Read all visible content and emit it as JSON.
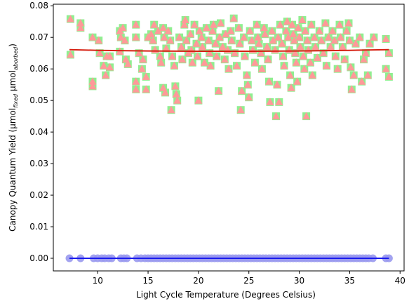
{
  "chart_data": {
    "type": "scatter",
    "xlabel": "Light Cycle Temperature (Degrees Celsius)",
    "ylabel": {
      "text": "Canopy Quantum Yield (μmol",
      "sub1": "fixed",
      "mid": " μmol",
      "sub2": "aborbed",
      "end": ")"
    },
    "xlim": [
      5.6,
      40.4
    ],
    "ylim": [
      -0.004,
      0.0805
    ],
    "xticks": [
      10,
      15,
      20,
      25,
      30,
      35,
      40
    ],
    "xtick_labels": [
      "10",
      "15",
      "20",
      "25",
      "30",
      "35",
      "40"
    ],
    "yticks": [
      0.0,
      0.01,
      0.02,
      0.03,
      0.04,
      0.05,
      0.06,
      0.07,
      0.08
    ],
    "ytick_labels": [
      "0.00",
      "0.01",
      "0.02",
      "0.03",
      "0.04",
      "0.05",
      "0.06",
      "0.07",
      "0.08"
    ],
    "grid": false,
    "series": [
      {
        "marker": "square",
        "color": "#90EE90",
        "points": [
          [
            7.3,
            0.0758
          ],
          [
            7.3,
            0.0645
          ],
          [
            8.3,
            0.0745
          ],
          [
            8.3,
            0.073
          ],
          [
            9.5,
            0.07
          ],
          [
            9.5,
            0.056
          ],
          [
            9.5,
            0.0545
          ],
          [
            10.1,
            0.069
          ],
          [
            10.2,
            0.065
          ],
          [
            10.6,
            0.061
          ],
          [
            10.8,
            0.058
          ],
          [
            10.9,
            0.064
          ],
          [
            11.2,
            0.0605
          ],
          [
            11.2,
            0.064
          ],
          [
            12.2,
            0.072
          ],
          [
            12.3,
            0.07
          ],
          [
            12.2,
            0.0655
          ],
          [
            12.5,
            0.073
          ],
          [
            12.7,
            0.069
          ],
          [
            12.8,
            0.063
          ],
          [
            13.0,
            0.0615
          ],
          [
            13.8,
            0.074
          ],
          [
            13.8,
            0.07
          ],
          [
            13.8,
            0.056
          ],
          [
            13.8,
            0.0535
          ],
          [
            14.1,
            0.065
          ],
          [
            14.4,
            0.06
          ],
          [
            14.5,
            0.063
          ],
          [
            14.8,
            0.0575
          ],
          [
            14.8,
            0.0535
          ],
          [
            15.0,
            0.07
          ],
          [
            15.3,
            0.071
          ],
          [
            15.5,
            0.069
          ],
          [
            15.6,
            0.074
          ],
          [
            15.7,
            0.066
          ],
          [
            16.0,
            0.072
          ],
          [
            16.2,
            0.064
          ],
          [
            16.3,
            0.062
          ],
          [
            16.5,
            0.073
          ],
          [
            16.5,
            0.054
          ],
          [
            16.6,
            0.07
          ],
          [
            16.7,
            0.0525
          ],
          [
            16.8,
            0.0665
          ],
          [
            17.0,
            0.072
          ],
          [
            17.2,
            0.069
          ],
          [
            17.3,
            0.047
          ],
          [
            17.4,
            0.064
          ],
          [
            17.6,
            0.061
          ],
          [
            17.7,
            0.0545
          ],
          [
            17.8,
            0.052
          ],
          [
            17.9,
            0.05
          ],
          [
            18.1,
            0.07
          ],
          [
            18.3,
            0.067
          ],
          [
            18.4,
            0.063
          ],
          [
            18.6,
            0.074
          ],
          [
            18.7,
            0.0755
          ],
          [
            18.8,
            0.069
          ],
          [
            19.0,
            0.065
          ],
          [
            19.2,
            0.071
          ],
          [
            19.3,
            0.066
          ],
          [
            19.4,
            0.062
          ],
          [
            19.6,
            0.074
          ],
          [
            19.8,
            0.068
          ],
          [
            19.9,
            0.064
          ],
          [
            20.0,
            0.05
          ],
          [
            20.1,
            0.072
          ],
          [
            20.3,
            0.07
          ],
          [
            20.4,
            0.067
          ],
          [
            20.6,
            0.062
          ],
          [
            20.8,
            0.073
          ],
          [
            21.0,
            0.069
          ],
          [
            21.1,
            0.065
          ],
          [
            21.2,
            0.061
          ],
          [
            21.4,
            0.072
          ],
          [
            21.5,
            0.074
          ],
          [
            21.7,
            0.068
          ],
          [
            21.8,
            0.064
          ],
          [
            22.0,
            0.053
          ],
          [
            22.1,
            0.07
          ],
          [
            22.2,
            0.0745
          ],
          [
            22.4,
            0.067
          ],
          [
            22.6,
            0.063
          ],
          [
            22.7,
            0.071
          ],
          [
            22.9,
            0.066
          ],
          [
            23.0,
            0.06
          ],
          [
            23.2,
            0.072
          ],
          [
            23.3,
            0.069
          ],
          [
            23.5,
            0.076
          ],
          [
            23.6,
            0.065
          ],
          [
            23.8,
            0.061
          ],
          [
            24.0,
            0.073
          ],
          [
            24.1,
            0.068
          ],
          [
            24.2,
            0.047
          ],
          [
            24.3,
            0.053
          ],
          [
            24.5,
            0.07
          ],
          [
            24.6,
            0.064
          ],
          [
            24.8,
            0.058
          ],
          [
            24.9,
            0.055
          ],
          [
            25.0,
            0.051
          ],
          [
            25.1,
            0.072
          ],
          [
            25.3,
            0.069
          ],
          [
            25.4,
            0.066
          ],
          [
            25.6,
            0.062
          ],
          [
            25.8,
            0.074
          ],
          [
            25.9,
            0.07
          ],
          [
            26.0,
            0.068
          ],
          [
            26.2,
            0.065
          ],
          [
            26.3,
            0.06
          ],
          [
            26.5,
            0.073
          ],
          [
            26.6,
            0.071
          ],
          [
            26.8,
            0.067
          ],
          [
            26.9,
            0.063
          ],
          [
            27.0,
            0.056
          ],
          [
            27.1,
            0.0495
          ],
          [
            27.3,
            0.072
          ],
          [
            27.4,
            0.069
          ],
          [
            27.6,
            0.066
          ],
          [
            27.7,
            0.045
          ],
          [
            27.8,
            0.055
          ],
          [
            27.9,
            0.07
          ],
          [
            28.0,
            0.0495
          ],
          [
            28.1,
            0.074
          ],
          [
            28.3,
            0.068
          ],
          [
            28.4,
            0.064
          ],
          [
            28.5,
            0.061
          ],
          [
            28.7,
            0.072
          ],
          [
            28.8,
            0.075
          ],
          [
            28.9,
            0.07
          ],
          [
            29.0,
            0.066
          ],
          [
            29.1,
            0.058
          ],
          [
            29.2,
            0.054
          ],
          [
            29.3,
            0.074
          ],
          [
            29.4,
            0.071
          ],
          [
            29.5,
            0.069
          ],
          [
            29.6,
            0.065
          ],
          [
            29.7,
            0.062
          ],
          [
            29.8,
            0.056
          ],
          [
            29.9,
            0.073
          ],
          [
            30.0,
            0.07
          ],
          [
            30.1,
            0.067
          ],
          [
            30.3,
            0.0755
          ],
          [
            30.4,
            0.064
          ],
          [
            30.5,
            0.06
          ],
          [
            30.6,
            0.072
          ],
          [
            30.7,
            0.045
          ],
          [
            30.8,
            0.069
          ],
          [
            30.9,
            0.066
          ],
          [
            31.1,
            0.062
          ],
          [
            31.2,
            0.074
          ],
          [
            31.3,
            0.058
          ],
          [
            31.5,
            0.07
          ],
          [
            31.6,
            0.067
          ],
          [
            31.8,
            0.0635
          ],
          [
            32.0,
            0.072
          ],
          [
            32.2,
            0.069
          ],
          [
            32.4,
            0.065
          ],
          [
            32.6,
            0.0745
          ],
          [
            32.7,
            0.061
          ],
          [
            32.9,
            0.07
          ],
          [
            33.1,
            0.067
          ],
          [
            33.3,
            0.072
          ],
          [
            33.5,
            0.069
          ],
          [
            33.6,
            0.064
          ],
          [
            33.8,
            0.06
          ],
          [
            34.0,
            0.074
          ],
          [
            34.1,
            0.07
          ],
          [
            34.3,
            0.067
          ],
          [
            34.5,
            0.063
          ],
          [
            34.7,
            0.072
          ],
          [
            34.9,
            0.0745
          ],
          [
            35.0,
            0.069
          ],
          [
            35.1,
            0.0605
          ],
          [
            35.2,
            0.0535
          ],
          [
            35.4,
            0.058
          ],
          [
            35.6,
            0.068
          ],
          [
            36.0,
            0.07
          ],
          [
            36.2,
            0.056
          ],
          [
            36.4,
            0.063
          ],
          [
            36.6,
            0.065
          ],
          [
            36.8,
            0.058
          ],
          [
            37.0,
            0.068
          ],
          [
            37.4,
            0.07
          ],
          [
            38.6,
            0.0695
          ],
          [
            38.6,
            0.06
          ],
          [
            38.9,
            0.065
          ],
          [
            38.9,
            0.0575
          ]
        ]
      },
      {
        "marker": "triangle-up",
        "color": "#FF9999",
        "points": "same as the square series (overlaid)"
      },
      {
        "marker": "circle",
        "color": "#9999EE",
        "points_note": "all at y = 0",
        "x": [
          7.2,
          8.3,
          9.6,
          10.0,
          10.4,
          10.7,
          11.1,
          11.4,
          12.3,
          12.6,
          12.9,
          13.9,
          14.3,
          14.7,
          15.0,
          15.3,
          15.6,
          15.9,
          16.2,
          16.5,
          16.8,
          17.1,
          17.4,
          17.7,
          18.0,
          18.3,
          18.6,
          18.9,
          19.2,
          19.5,
          19.8,
          20.1,
          20.4,
          20.7,
          21.0,
          21.3,
          21.6,
          21.9,
          22.2,
          22.5,
          22.8,
          23.1,
          23.4,
          23.7,
          24.0,
          24.3,
          24.6,
          24.9,
          25.2,
          25.5,
          25.8,
          26.1,
          26.4,
          26.7,
          27.0,
          27.3,
          27.6,
          27.9,
          28.2,
          28.5,
          28.8,
          29.1,
          29.4,
          29.7,
          30.0,
          30.3,
          30.6,
          30.9,
          31.2,
          31.5,
          31.8,
          32.1,
          32.4,
          32.7,
          33.0,
          33.3,
          33.6,
          33.9,
          34.2,
          34.5,
          34.8,
          35.1,
          35.4,
          35.7,
          36.0,
          36.3,
          36.6,
          36.9,
          37.3,
          38.6,
          38.9
        ]
      }
    ],
    "lines": [
      {
        "color": "#D62012",
        "x": [
          7.2,
          10,
          15,
          20,
          25,
          30,
          35,
          38.9
        ],
        "y": [
          0.0661,
          0.0659,
          0.0657,
          0.0656,
          0.0656,
          0.0657,
          0.0659,
          0.0661
        ]
      },
      {
        "color": "#1A1AEE",
        "x": [
          7.2,
          38.9
        ],
        "y": [
          0.0,
          0.0
        ]
      }
    ]
  }
}
